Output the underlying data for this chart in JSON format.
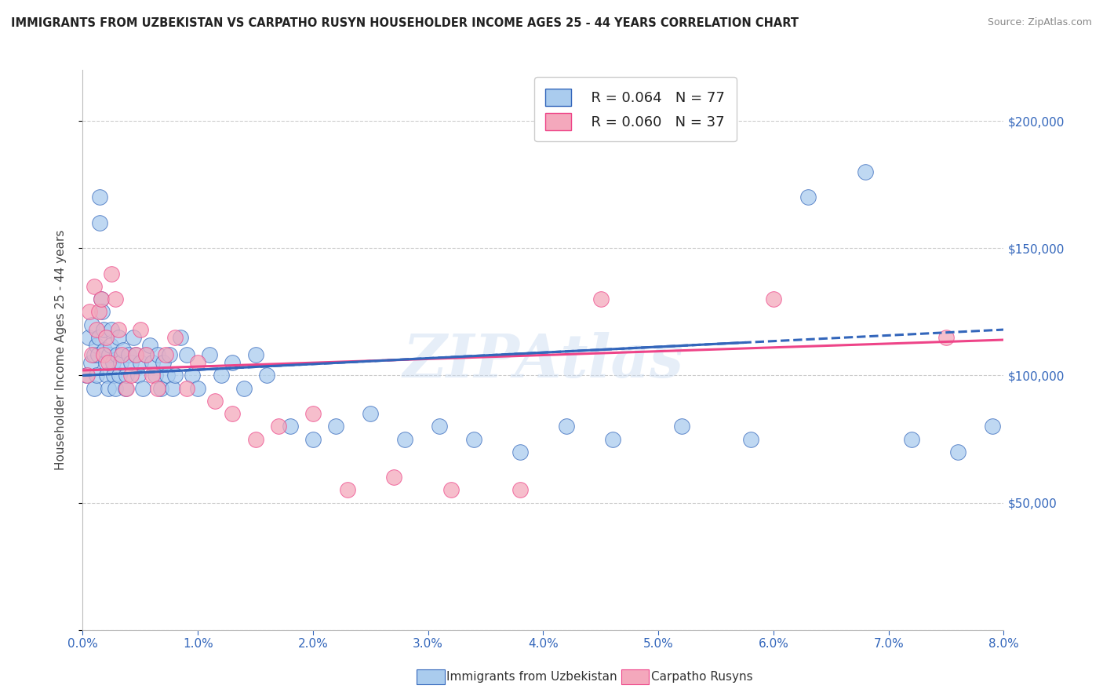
{
  "title": "IMMIGRANTS FROM UZBEKISTAN VS CARPATHO RUSYN HOUSEHOLDER INCOME AGES 25 - 44 YEARS CORRELATION CHART",
  "source": "Source: ZipAtlas.com",
  "ylabel": "Householder Income Ages 25 - 44 years",
  "r_uzbekistan": 0.064,
  "n_uzbekistan": 77,
  "r_carpatho": 0.06,
  "n_carpatho": 37,
  "legend_label_uzbekistan": "Immigrants from Uzbekistan",
  "legend_label_carpatho": "Carpatho Rusyns",
  "watermark": "ZIPAtlas",
  "xmin": 0.0,
  "xmax": 0.08,
  "ymin": 0,
  "ymax": 220000,
  "yticks": [
    0,
    50000,
    100000,
    150000,
    200000
  ],
  "ytick_labels": [
    "",
    "$50,000",
    "$100,000",
    "$150,000",
    "$200,000"
  ],
  "xticks": [
    0.0,
    0.01,
    0.02,
    0.03,
    0.04,
    0.05,
    0.06,
    0.07,
    0.08
  ],
  "xtick_labels": [
    "0.0%",
    "1.0%",
    "2.0%",
    "3.0%",
    "4.0%",
    "5.0%",
    "6.0%",
    "7.0%",
    "8.0%"
  ],
  "color_uzbekistan": "#aaccee",
  "color_carpatho": "#f4a8bc",
  "color_uzbekistan_line": "#3366bb",
  "color_carpatho_line": "#ee4488",
  "uzbekistan_x": [
    0.0003,
    0.0005,
    0.0007,
    0.0008,
    0.001,
    0.001,
    0.0012,
    0.0012,
    0.0013,
    0.0014,
    0.0015,
    0.0015,
    0.0016,
    0.0017,
    0.0018,
    0.0019,
    0.002,
    0.0021,
    0.0022,
    0.0023,
    0.0024,
    0.0025,
    0.0026,
    0.0027,
    0.0028,
    0.003,
    0.0031,
    0.0032,
    0.0033,
    0.0035,
    0.0037,
    0.0038,
    0.004,
    0.0042,
    0.0044,
    0.0046,
    0.0048,
    0.005,
    0.0052,
    0.0055,
    0.0058,
    0.006,
    0.0063,
    0.0065,
    0.0068,
    0.007,
    0.0073,
    0.0075,
    0.0078,
    0.008,
    0.0085,
    0.009,
    0.0095,
    0.01,
    0.011,
    0.012,
    0.013,
    0.014,
    0.015,
    0.016,
    0.018,
    0.02,
    0.022,
    0.025,
    0.028,
    0.031,
    0.034,
    0.038,
    0.042,
    0.046,
    0.052,
    0.058,
    0.063,
    0.068,
    0.072,
    0.076,
    0.079
  ],
  "uzbekistan_y": [
    100000,
    115000,
    105000,
    120000,
    108000,
    95000,
    112000,
    100000,
    108000,
    115000,
    160000,
    170000,
    130000,
    125000,
    118000,
    110000,
    105000,
    100000,
    95000,
    108000,
    112000,
    118000,
    105000,
    100000,
    95000,
    108000,
    115000,
    100000,
    105000,
    110000,
    95000,
    100000,
    108000,
    105000,
    115000,
    108000,
    100000,
    105000,
    95000,
    108000,
    112000,
    105000,
    100000,
    108000,
    95000,
    105000,
    100000,
    108000,
    95000,
    100000,
    115000,
    108000,
    100000,
    95000,
    108000,
    100000,
    105000,
    95000,
    108000,
    100000,
    80000,
    75000,
    80000,
    85000,
    75000,
    80000,
    75000,
    70000,
    80000,
    75000,
    80000,
    75000,
    170000,
    180000,
    75000,
    70000,
    80000
  ],
  "carpatho_x": [
    0.0004,
    0.0006,
    0.0008,
    0.001,
    0.0012,
    0.0014,
    0.0016,
    0.0018,
    0.002,
    0.0022,
    0.0025,
    0.0028,
    0.0031,
    0.0034,
    0.0038,
    0.0042,
    0.0046,
    0.005,
    0.0055,
    0.006,
    0.0065,
    0.0072,
    0.008,
    0.009,
    0.01,
    0.0115,
    0.013,
    0.015,
    0.017,
    0.02,
    0.023,
    0.027,
    0.032,
    0.038,
    0.045,
    0.06,
    0.075
  ],
  "carpatho_y": [
    100000,
    125000,
    108000,
    135000,
    118000,
    125000,
    130000,
    108000,
    115000,
    105000,
    140000,
    130000,
    118000,
    108000,
    95000,
    100000,
    108000,
    118000,
    108000,
    100000,
    95000,
    108000,
    115000,
    95000,
    105000,
    90000,
    85000,
    75000,
    80000,
    85000,
    55000,
    60000,
    55000,
    55000,
    130000,
    130000,
    115000
  ],
  "trend_uzbek_x0": 0.0,
  "trend_uzbek_x1": 0.08,
  "trend_uzbek_y0": 100000,
  "trend_uzbek_y1": 118000,
  "trend_carp_x0": 0.0,
  "trend_carp_x1": 0.08,
  "trend_carp_y0": 102000,
  "trend_carp_y1": 114000
}
